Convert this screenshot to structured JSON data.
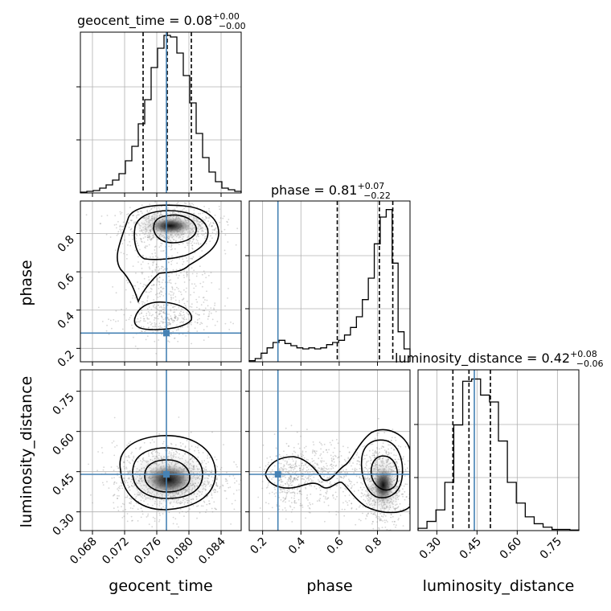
{
  "chart_data": {
    "type": "corner",
    "parameters": [
      "geocent_time",
      "phase",
      "luminosity_distance"
    ],
    "truths": {
      "geocent_time": 0.0772,
      "phase": 0.28,
      "luminosity_distance": 0.44
    },
    "truth_color": "#4682b4",
    "panels": {
      "geocent_time_hist": {
        "title": "geocent_time = 0.08",
        "title_sup": "+0.00",
        "title_sub": "−0.00",
        "x_range": [
          0.0665,
          0.0865
        ],
        "quantiles": [
          0.0743,
          0.0773,
          0.0803
        ],
        "counts": [
          0.5,
          1,
          1.5,
          3,
          5,
          8,
          12,
          20,
          29,
          43,
          58,
          78,
          90,
          98,
          97,
          87,
          73,
          56,
          37,
          22,
          13,
          7,
          3,
          2,
          1
        ],
        "ylim": [
          0,
          100
        ]
      },
      "phase_hist": {
        "title": "phase = 0.81",
        "title_sup": "+0.07",
        "title_sub": "−0.22",
        "x_range": [
          0.13,
          0.97
        ],
        "quantiles": [
          0.59,
          0.81,
          0.88
        ],
        "counts": [
          1,
          3,
          8,
          13,
          18,
          20,
          17,
          15,
          13,
          12,
          13,
          12,
          13,
          16,
          18,
          20,
          25,
          32,
          42,
          58,
          78,
          110,
          135,
          142,
          92,
          28,
          12
        ],
        "ylim": [
          0,
          150
        ]
      },
      "luminosity_distance_hist": {
        "title": "luminosity_distance = 0.42",
        "title_sup": "+0.08",
        "title_sub": "−0.06",
        "x_range": [
          0.23,
          0.83
        ],
        "quantiles": [
          0.36,
          0.42,
          0.5
        ],
        "counts": [
          2,
          8,
          18,
          42,
          92,
          130,
          132,
          118,
          112,
          78,
          42,
          24,
          12,
          6,
          3,
          1,
          1,
          0.5
        ],
        "ylim": [
          0,
          140
        ]
      }
    },
    "axis_labels": {
      "geocent_time": "geocent_time",
      "phase": "phase",
      "luminosity_distance": "luminosity_distance"
    },
    "ticks": {
      "geocent_time": [
        "0.068",
        "0.072",
        "0.076",
        "0.080",
        "0.084"
      ],
      "phase_x": [
        "0.2",
        "0.4",
        "0.6",
        "0.8"
      ],
      "phase_y": [
        "0.2",
        "0.4",
        "0.6",
        "0.8"
      ],
      "luminosity_distance_x": [
        "0.30",
        "0.45",
        "0.60",
        "0.75"
      ],
      "luminosity_distance_y": [
        "0.30",
        "0.45",
        "0.60",
        "0.75"
      ]
    },
    "tick_values": {
      "geocent_time": [
        0.068,
        0.072,
        0.076,
        0.08,
        0.084
      ],
      "phase": [
        0.2,
        0.4,
        0.6,
        0.8
      ],
      "luminosity_distance": [
        0.3,
        0.45,
        0.6,
        0.75
      ]
    },
    "ranges": {
      "geocent_time": [
        0.0665,
        0.0865
      ],
      "phase": [
        0.13,
        0.97
      ],
      "luminosity_distance": [
        0.23,
        0.83
      ]
    },
    "grid": true
  }
}
